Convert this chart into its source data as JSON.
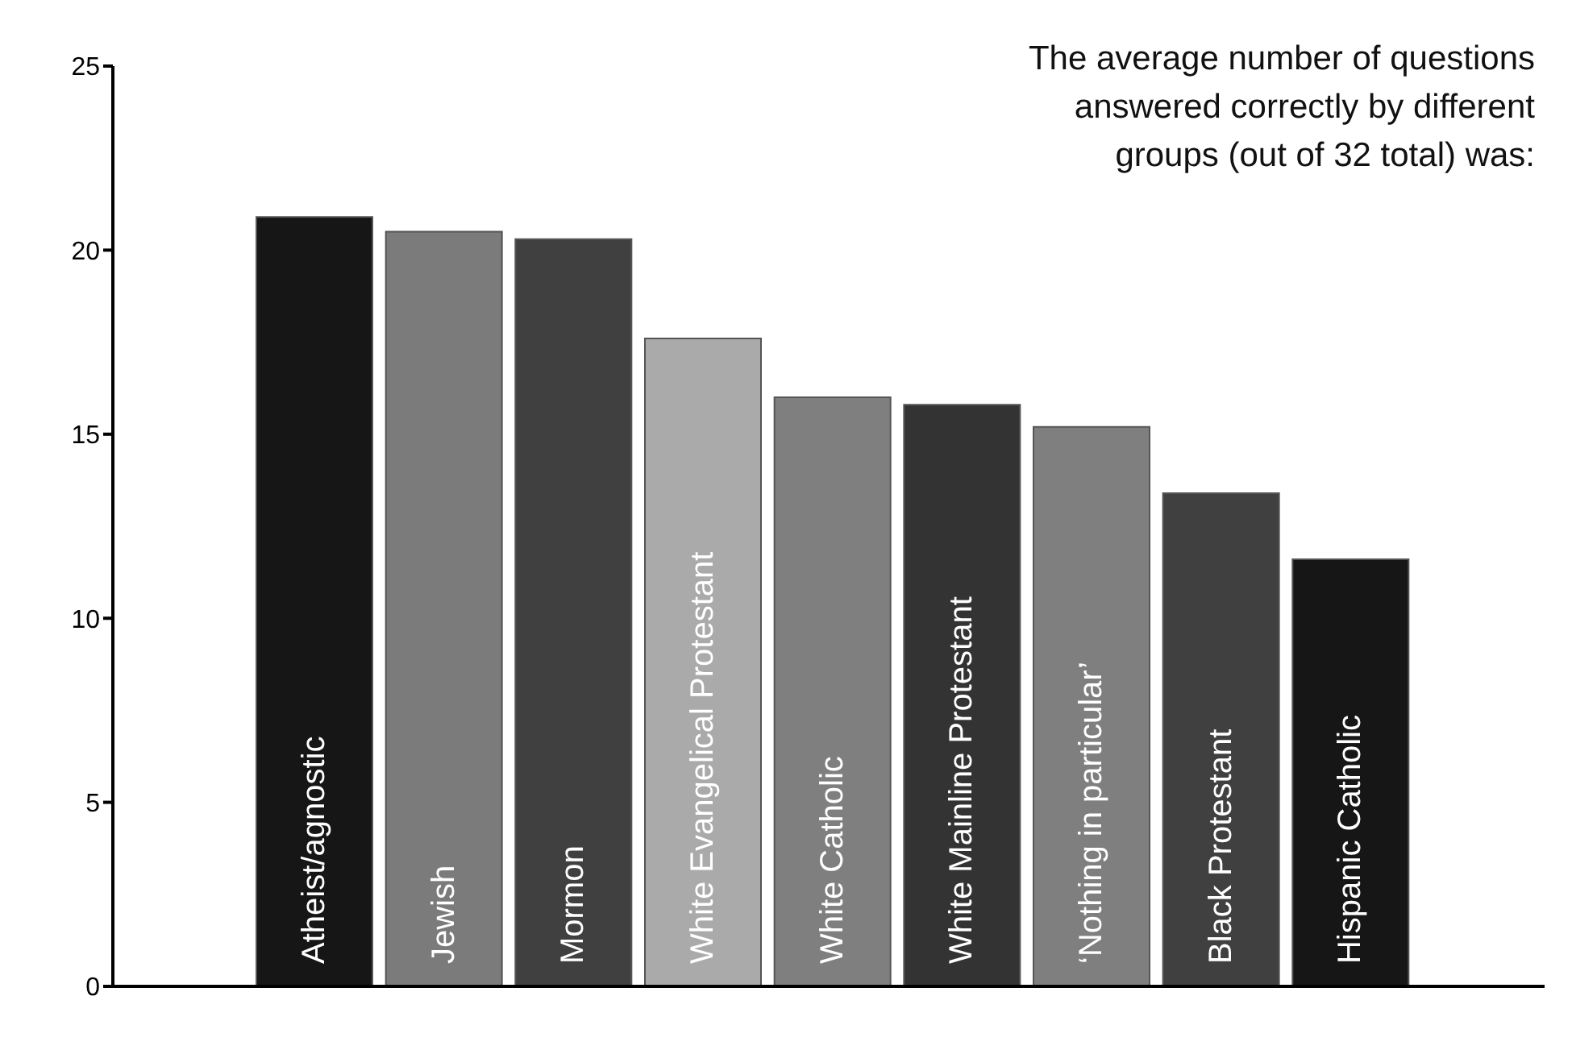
{
  "chart_data": {
    "type": "bar",
    "title": "The average number of questions answered correctly by different groups (out of 32 total) was:",
    "categories": [
      "Atheist/agnostic",
      "Jewish",
      "Mormon",
      "White Evangelical  Protestant",
      "White Catholic",
      "White Mainline Protestant",
      "‘Nothing in particular’",
      "Black Protestant",
      "Hispanic Catholic"
    ],
    "values": [
      20.9,
      20.5,
      20.3,
      17.6,
      16.0,
      15.8,
      15.2,
      13.4,
      11.6
    ],
    "colors": [
      "#161616",
      "#7b7b7b",
      "#404040",
      "#aaaaaa",
      "#7f7f7f",
      "#333333",
      "#7f7f7f",
      "#404040",
      "#161616"
    ],
    "ylim": [
      0,
      25
    ],
    "yticks": [
      0,
      5,
      10,
      15,
      20,
      25
    ]
  }
}
